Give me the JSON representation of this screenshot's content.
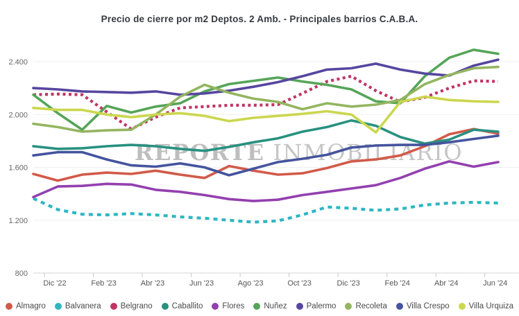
{
  "title": "Precio de cierre por m2 Deptos. 2 Amb. - Principales barrios C.A.B.A.",
  "watermark": {
    "part1": "REPORTE",
    "part2": "INMOBILIARIO"
  },
  "chart_data": {
    "type": "line",
    "title": "Precio de cierre por m2 Deptos. 2 Amb. - Principales barrios C.A.B.A.",
    "xlabel": "",
    "ylabel": "",
    "ylim": [
      800,
      2400
    ],
    "grid": "horizontal",
    "legend_position": "bottom",
    "x": [
      "Dic '22",
      "Ene '23",
      "Feb '23",
      "Mar '23",
      "Abr '23",
      "May '23",
      "Jun '23",
      "Jul '23",
      "Ago '23",
      "Sep '23",
      "Oct '23",
      "Nov '23",
      "Dic '23",
      "Ene '24",
      "Feb '24",
      "Mar '24",
      "Abr '24",
      "May '24",
      "Jun '24",
      "Jul '24"
    ],
    "x_tick_labels": [
      "Dic '22",
      "Feb '23",
      "Abr '23",
      "Jun '23",
      "Ago '23",
      "Oct '23",
      "Dic '23",
      "Feb '24",
      "Abr '24",
      "Jun '24"
    ],
    "y_ticks": [
      {
        "label": "800",
        "value": 800
      },
      {
        "label": "1.200",
        "value": 1200
      },
      {
        "label": "1.600",
        "value": 1600
      },
      {
        "label": "2.000",
        "value": 2000
      },
      {
        "label": "2.400",
        "value": 2400
      }
    ],
    "series": [
      {
        "name": "Almagro",
        "color": "#d25a49",
        "line_style": "solid",
        "values": [
          1550,
          1500,
          1545,
          1560,
          1550,
          1575,
          1545,
          1520,
          1610,
          1575,
          1545,
          1555,
          1595,
          1645,
          1660,
          1690,
          1760,
          1850,
          1890,
          1855
        ]
      },
      {
        "name": "Balvanera",
        "color": "#2fb6c2",
        "line_style": "dashed",
        "values": [
          1365,
          1280,
          1245,
          1240,
          1250,
          1240,
          1225,
          1215,
          1200,
          1185,
          1195,
          1240,
          1300,
          1290,
          1275,
          1285,
          1315,
          1330,
          1335,
          1330
        ]
      },
      {
        "name": "Belgrano",
        "color": "#bf3662",
        "line_style": "dotted",
        "values": [
          2150,
          2155,
          2150,
          2020,
          1890,
          1980,
          2050,
          2060,
          2070,
          2070,
          2075,
          2160,
          2250,
          2290,
          2180,
          2095,
          2130,
          2200,
          2255,
          2250
        ]
      },
      {
        "name": "Caballito",
        "color": "#289180",
        "line_style": "solid",
        "values": [
          1760,
          1740,
          1745,
          1760,
          1770,
          1760,
          1740,
          1725,
          1755,
          1790,
          1820,
          1870,
          1905,
          1955,
          1915,
          1830,
          1780,
          1810,
          1885,
          1870
        ]
      },
      {
        "name": "Flores",
        "color": "#9340af",
        "line_style": "solid",
        "values": [
          1375,
          1455,
          1460,
          1475,
          1470,
          1430,
          1415,
          1390,
          1360,
          1345,
          1355,
          1390,
          1415,
          1440,
          1465,
          1520,
          1590,
          1645,
          1605,
          1640
        ]
      },
      {
        "name": "Nuñez",
        "color": "#55a558",
        "line_style": "solid",
        "values": [
          2150,
          2010,
          1885,
          2065,
          2015,
          2060,
          2085,
          2175,
          2230,
          2255,
          2280,
          2250,
          2225,
          2190,
          2100,
          2085,
          2290,
          2430,
          2490,
          2460
        ]
      },
      {
        "name": "Palermo",
        "color": "#56469f",
        "line_style": "solid",
        "values": [
          2200,
          2190,
          2175,
          2170,
          2165,
          2175,
          2150,
          2160,
          2180,
          2210,
          2245,
          2290,
          2340,
          2350,
          2385,
          2340,
          2310,
          2295,
          2370,
          2415
        ]
      },
      {
        "name": "Recoleta",
        "color": "#93b55f",
        "line_style": "solid",
        "values": [
          1930,
          1905,
          1870,
          1880,
          1885,
          2000,
          2135,
          2225,
          2165,
          2120,
          2095,
          2040,
          2085,
          2060,
          2075,
          2110,
          2230,
          2300,
          2350,
          2360
        ]
      },
      {
        "name": "Villa Crespo",
        "color": "#44549e",
        "line_style": "solid",
        "values": [
          1690,
          1715,
          1715,
          1660,
          1615,
          1605,
          1630,
          1600,
          1540,
          1590,
          1640,
          1665,
          1695,
          1750,
          1765,
          1770,
          1770,
          1790,
          1815,
          1840
        ]
      },
      {
        "name": "Villa Urquiza",
        "color": "#cbd74f",
        "line_style": "solid",
        "values": [
          2050,
          2035,
          2035,
          2000,
          1980,
          2000,
          2010,
          1990,
          1950,
          1975,
          1990,
          2005,
          2025,
          2000,
          1865,
          2095,
          2135,
          2110,
          2100,
          2095
        ]
      }
    ]
  }
}
